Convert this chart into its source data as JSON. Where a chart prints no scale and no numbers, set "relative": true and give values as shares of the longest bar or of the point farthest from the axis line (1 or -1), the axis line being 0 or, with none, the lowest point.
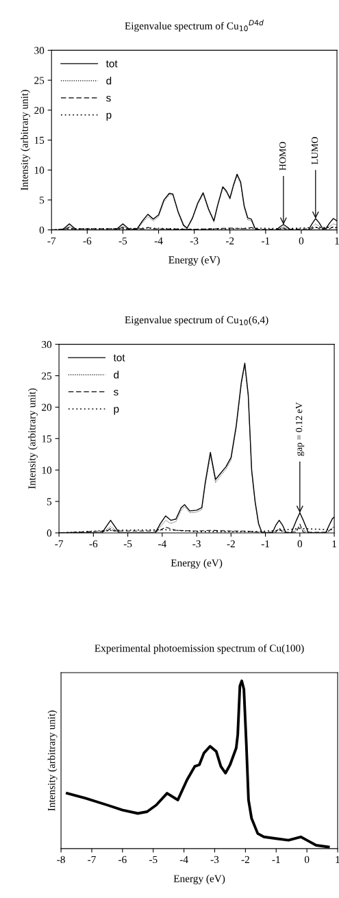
{
  "chart_data": [
    {
      "type": "line",
      "title": "Eigenvalue spectrum of Cu$_{10}$$^{D4d}$",
      "xlabel": "Energy (eV)",
      "ylabel": "Intensity (arbitrary unit)",
      "xlim": [
        -7,
        1
      ],
      "ylim": [
        0,
        30
      ],
      "xticks": [
        -7,
        -6,
        -5,
        -4,
        -3,
        -2,
        -1,
        0,
        1
      ],
      "yticks": [
        0,
        5,
        10,
        15,
        20,
        25,
        30
      ],
      "legend": "top left",
      "grid": false,
      "annotations": [
        {
          "text": "HOMO",
          "x": -0.5,
          "y": 0.9
        },
        {
          "text": "LUMO",
          "x": 0.4,
          "y": 1.9
        }
      ],
      "series": [
        {
          "name": "tot",
          "color": "#000000",
          "line_style": "solid",
          "x": [
            -7,
            -6.7,
            -6.6,
            -6.5,
            -6.4,
            -6.3,
            -5.2,
            -5.1,
            -5.0,
            -4.9,
            -4.8,
            -4.6,
            -4.45,
            -4.3,
            -4.15,
            -4.0,
            -3.85,
            -3.7,
            -3.6,
            -3.45,
            -3.3,
            -3.2,
            -3.05,
            -2.9,
            -2.75,
            -2.6,
            -2.45,
            -2.35,
            -2.2,
            -2.1,
            -2.0,
            -1.9,
            -1.8,
            -1.7,
            -1.6,
            -1.5,
            -1.4,
            -1.3,
            -1.2,
            -0.7,
            -0.6,
            -0.5,
            -0.4,
            -0.3,
            0.2,
            0.3,
            0.4,
            0.5,
            0.6,
            0.7,
            0.8,
            0.9,
            1.0
          ],
          "values": [
            0,
            0,
            0.5,
            1.0,
            0.5,
            0,
            0,
            0.5,
            1.0,
            0.5,
            0,
            0.2,
            1.5,
            2.6,
            1.8,
            2.5,
            5.0,
            6.1,
            6.0,
            3.0,
            0.8,
            0.3,
            2.0,
            4.5,
            6.2,
            3.5,
            1.5,
            4.0,
            7.2,
            6.5,
            5.3,
            7.5,
            9.3,
            8.0,
            4.0,
            2.0,
            1.8,
            0.3,
            0,
            0,
            0.5,
            0.9,
            0.5,
            0,
            0,
            1.0,
            1.9,
            1.2,
            0.2,
            0.3,
            1.2,
            1.9,
            1.5
          ]
        },
        {
          "name": "d",
          "color": "#000000",
          "line_style": "dotted",
          "x": [
            -7,
            -6.7,
            -6.6,
            -6.5,
            -6.4,
            -6.3,
            -5.2,
            -5.1,
            -5.0,
            -4.9,
            -4.8,
            -4.6,
            -4.45,
            -4.3,
            -4.15,
            -4.0,
            -3.85,
            -3.7,
            -3.6,
            -3.45,
            -3.3,
            -3.2,
            -3.05,
            -2.9,
            -2.75,
            -2.6,
            -2.45,
            -2.35,
            -2.2,
            -2.1,
            -2.0,
            -1.9,
            -1.8,
            -1.7,
            -1.6,
            -1.5,
            -1.4,
            -1.3,
            -1.2,
            -0.7,
            -0.6,
            -0.5,
            -0.4,
            -0.3,
            0.2,
            0.3,
            0.4,
            0.5,
            0.6,
            0.7,
            0.8,
            0.9,
            1.0
          ],
          "values": [
            0,
            0,
            0.3,
            0.6,
            0.3,
            0,
            0,
            0.3,
            0.6,
            0.3,
            0,
            0.1,
            1.2,
            2.2,
            1.5,
            2.2,
            4.7,
            5.9,
            5.8,
            2.8,
            0.6,
            0.2,
            1.8,
            4.3,
            6.0,
            3.3,
            1.3,
            3.8,
            7.0,
            6.3,
            5.1,
            7.3,
            9.0,
            7.7,
            3.7,
            1.7,
            1.5,
            0.2,
            0,
            0,
            0.3,
            0.5,
            0.3,
            0,
            0,
            0.5,
            1.0,
            0.6,
            0.1,
            0.2,
            0.6,
            1.0,
            0.8
          ]
        },
        {
          "name": "s",
          "color": "#000000",
          "line_style": "dashed",
          "x": [
            -7,
            -6.6,
            -6.5,
            -6.4,
            -5.1,
            -5.0,
            -4.9,
            -4.4,
            -4.3,
            -4.2,
            -3.0,
            -2.0,
            -1.5,
            -1.4,
            -1.3,
            -0.6,
            -0.5,
            -0.4,
            0.3,
            0.4,
            0.5,
            0.8,
            0.9,
            1.0
          ],
          "values": [
            0,
            0.2,
            0.4,
            0.2,
            0.2,
            0.4,
            0.2,
            0.2,
            0.4,
            0.2,
            0.1,
            0.3,
            0.2,
            0.4,
            0.1,
            0.1,
            0.3,
            0.1,
            0.2,
            0.5,
            0.2,
            0.2,
            0.5,
            0.4
          ]
        },
        {
          "name": "p",
          "color": "#000000",
          "line_style": "dotted",
          "x": [
            -7,
            -6.5,
            -5.0,
            -4.3,
            -3.0,
            -2.0,
            -1.4,
            -0.5,
            0.4,
            0.9,
            1.0
          ],
          "values": [
            0,
            0.2,
            0.2,
            0.3,
            0.1,
            0.2,
            0.3,
            0.2,
            0.4,
            0.4,
            0.3
          ]
        }
      ]
    },
    {
      "type": "line",
      "title": "Eigenvalue spectrum of Cu$_{10}$(6,4)",
      "xlabel": "Energy (eV)",
      "ylabel": "Intensity (arbitrary unit)",
      "xlim": [
        -7,
        1
      ],
      "ylim": [
        0,
        30
      ],
      "xticks": [
        -7,
        -6,
        -5,
        -4,
        -3,
        -2,
        -1,
        0,
        1
      ],
      "yticks": [
        0,
        5,
        10,
        15,
        20,
        25,
        30
      ],
      "legend": "top left",
      "grid": false,
      "annotations": [
        {
          "text": "gap = 0.12 eV",
          "x": 0,
          "y": 3.2
        }
      ],
      "series": [
        {
          "name": "tot",
          "color": "#000000",
          "line_style": "solid",
          "x": [
            -7,
            -5.75,
            -5.6,
            -5.5,
            -5.4,
            -5.25,
            -4.2,
            -4.05,
            -3.9,
            -3.75,
            -3.6,
            -3.45,
            -3.35,
            -3.2,
            -3.0,
            -2.85,
            -2.75,
            -2.6,
            -2.45,
            -2.3,
            -2.15,
            -2.0,
            -1.85,
            -1.7,
            -1.6,
            -1.5,
            -1.4,
            -1.3,
            -1.2,
            -1.1,
            -0.8,
            -0.7,
            -0.6,
            -0.5,
            -0.4,
            -0.25,
            -0.1,
            0,
            0.1,
            0.25,
            0.75,
            0.85,
            0.95,
            1.0
          ],
          "values": [
            0,
            0,
            1.2,
            2.0,
            1.2,
            0,
            0,
            1.5,
            2.7,
            2.0,
            2.2,
            4.0,
            4.5,
            3.5,
            3.6,
            4.0,
            8.0,
            12.8,
            8.5,
            9.5,
            10.5,
            12.0,
            17.0,
            24.0,
            27.0,
            22.0,
            10.0,
            5.0,
            1.5,
            0,
            0,
            1.2,
            2.0,
            1.2,
            0,
            0,
            2.0,
            3.2,
            2.0,
            0,
            0,
            1.2,
            2.3,
            2.5
          ]
        },
        {
          "name": "d",
          "color": "#000000",
          "line_style": "dotted",
          "x": [
            -7,
            -5.75,
            -5.6,
            -5.5,
            -5.4,
            -5.25,
            -4.2,
            -4.05,
            -3.9,
            -3.75,
            -3.6,
            -3.45,
            -3.35,
            -3.2,
            -3.0,
            -2.85,
            -2.75,
            -2.6,
            -2.45,
            -2.3,
            -2.15,
            -2.0,
            -1.85,
            -1.7,
            -1.6,
            -1.5,
            -1.4,
            -1.3,
            -1.2,
            -1.1,
            -0.8,
            -0.7,
            -0.6,
            -0.5,
            -0.4,
            -0.25,
            -0.1,
            0,
            0.1,
            0.25,
            0.75,
            0.85,
            0.95,
            1.0
          ],
          "values": [
            0,
            0,
            0.6,
            1.0,
            0.6,
            0,
            0,
            1.0,
            2.0,
            1.5,
            1.8,
            3.6,
            4.2,
            3.2,
            3.3,
            3.7,
            7.6,
            12.3,
            8.0,
            9.1,
            10.1,
            11.6,
            16.6,
            23.6,
            26.6,
            21.6,
            9.6,
            4.7,
            1.3,
            0,
            0,
            0.3,
            0.5,
            0.3,
            0,
            0,
            0.5,
            0.8,
            0.5,
            0,
            0,
            0.4,
            0.8,
            1.0
          ]
        },
        {
          "name": "s",
          "color": "#000000",
          "line_style": "dashed",
          "x": [
            -7,
            -5.6,
            -5.5,
            -5.4,
            -4.1,
            -3.9,
            -3.6,
            -3.0,
            -2.6,
            -2.0,
            -1.6,
            -1.2,
            -0.7,
            -0.6,
            -0.5,
            -0.1,
            0,
            0.1,
            0.8,
            0.95,
            1.0
          ],
          "values": [
            0,
            0.3,
            0.7,
            0.3,
            0.3,
            0.9,
            0.4,
            0.3,
            0.4,
            0.3,
            0.3,
            0.1,
            0.1,
            0.8,
            0.1,
            0.1,
            1.4,
            0.1,
            0.1,
            0.8,
            0.9
          ]
        },
        {
          "name": "p",
          "color": "#000000",
          "line_style": "dotted",
          "x": [
            -7,
            -5.5,
            -3.9,
            -3.0,
            -2.0,
            -1.3,
            -0.6,
            0,
            0.9,
            1.0
          ],
          "values": [
            0,
            0.4,
            0.5,
            0.2,
            0.2,
            0.2,
            0.4,
            0.7,
            0.5,
            0.6
          ]
        }
      ]
    },
    {
      "type": "line",
      "title": "Experimental photoemission spectrum of Cu(100)",
      "xlabel": "Energy (eV)",
      "ylabel": "Intensity (arbitrary unit)",
      "relative": true,
      "xlim": [
        -8,
        1
      ],
      "xticks": [
        -8,
        -7,
        -6,
        -5,
        -4,
        -3,
        -2,
        -1,
        0,
        1
      ],
      "tick_labels": "x",
      "grid": false,
      "series": [
        {
          "color": "#000000",
          "line_style": "solid",
          "x": [
            -7.8,
            -7.2,
            -6.5,
            -6.0,
            -5.5,
            -5.2,
            -4.9,
            -4.55,
            -4.2,
            -3.9,
            -3.65,
            -3.5,
            -3.35,
            -3.15,
            -2.95,
            -2.8,
            -2.65,
            -2.5,
            -2.3,
            -2.25,
            -2.18,
            -2.12,
            -2.05,
            -1.97,
            -1.9,
            -1.8,
            -1.6,
            -1.4,
            -1.0,
            -0.6,
            -0.2,
            0.0,
            0.3,
            0.7
          ],
          "values": [
            0.33,
            0.3,
            0.26,
            0.23,
            0.21,
            0.22,
            0.26,
            0.33,
            0.29,
            0.41,
            0.49,
            0.5,
            0.57,
            0.61,
            0.58,
            0.49,
            0.45,
            0.5,
            0.6,
            0.68,
            0.97,
            1.0,
            0.95,
            0.62,
            0.29,
            0.18,
            0.09,
            0.07,
            0.06,
            0.05,
            0.07,
            0.05,
            0.02,
            0.01
          ]
        }
      ]
    }
  ]
}
